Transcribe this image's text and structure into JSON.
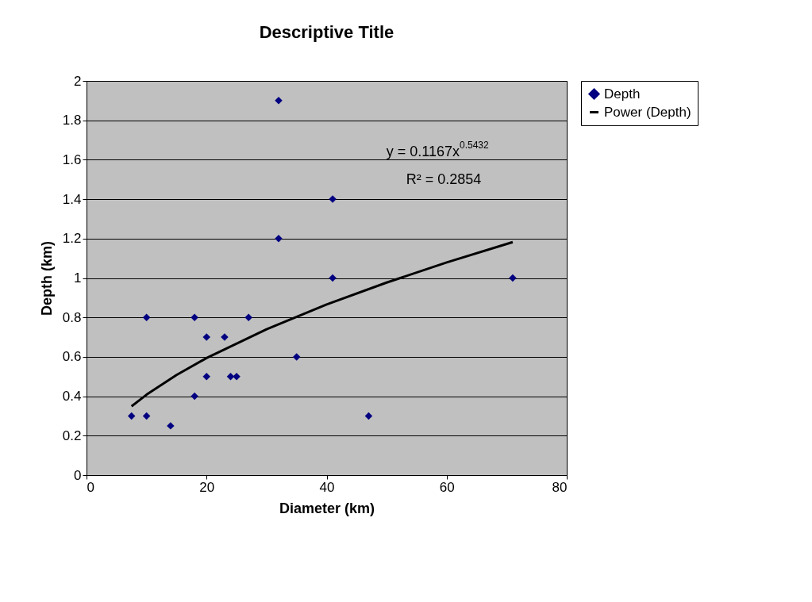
{
  "chart_data": {
    "type": "scatter",
    "title": "Descriptive Title",
    "xlabel": "Diameter (km)",
    "ylabel": "Depth (km)",
    "xlim": [
      0,
      80
    ],
    "xticks": [
      0,
      20,
      40,
      60,
      80
    ],
    "ylim": [
      0,
      2
    ],
    "yticks": [
      0,
      0.2,
      0.4,
      0.6,
      0.8,
      1,
      1.2,
      1.4,
      1.6,
      1.8,
      2
    ],
    "grid": "y",
    "legend": "right",
    "marker": "diamond",
    "series": [
      {
        "name": "Depth",
        "type": "scatter",
        "color": "#000080",
        "x": [
          7.5,
          10,
          10,
          14,
          18,
          18,
          20,
          20,
          23,
          24,
          25,
          27,
          32,
          32,
          35,
          41,
          41,
          47,
          71
        ],
        "values": [
          0.3,
          0.3,
          0.8,
          0.25,
          0.8,
          0.4,
          0.7,
          0.5,
          0.7,
          0.5,
          0.5,
          0.8,
          1.9,
          1.2,
          0.6,
          1.4,
          1.0,
          0.3,
          1.0
        ]
      },
      {
        "name": "Power (Depth)",
        "type": "line",
        "color": "#000000",
        "line_style": "solid",
        "marker": "none",
        "x": [
          7.5,
          10,
          15,
          20,
          30,
          40,
          50,
          60,
          71
        ],
        "values": [
          0.349,
          0.408,
          0.508,
          0.594,
          0.74,
          0.866,
          0.977,
          1.079,
          1.182
        ]
      }
    ],
    "annotations": [
      "y = 0.1167x$^{0.5432}$",
      "R² = 0.2854"
    ]
  }
}
